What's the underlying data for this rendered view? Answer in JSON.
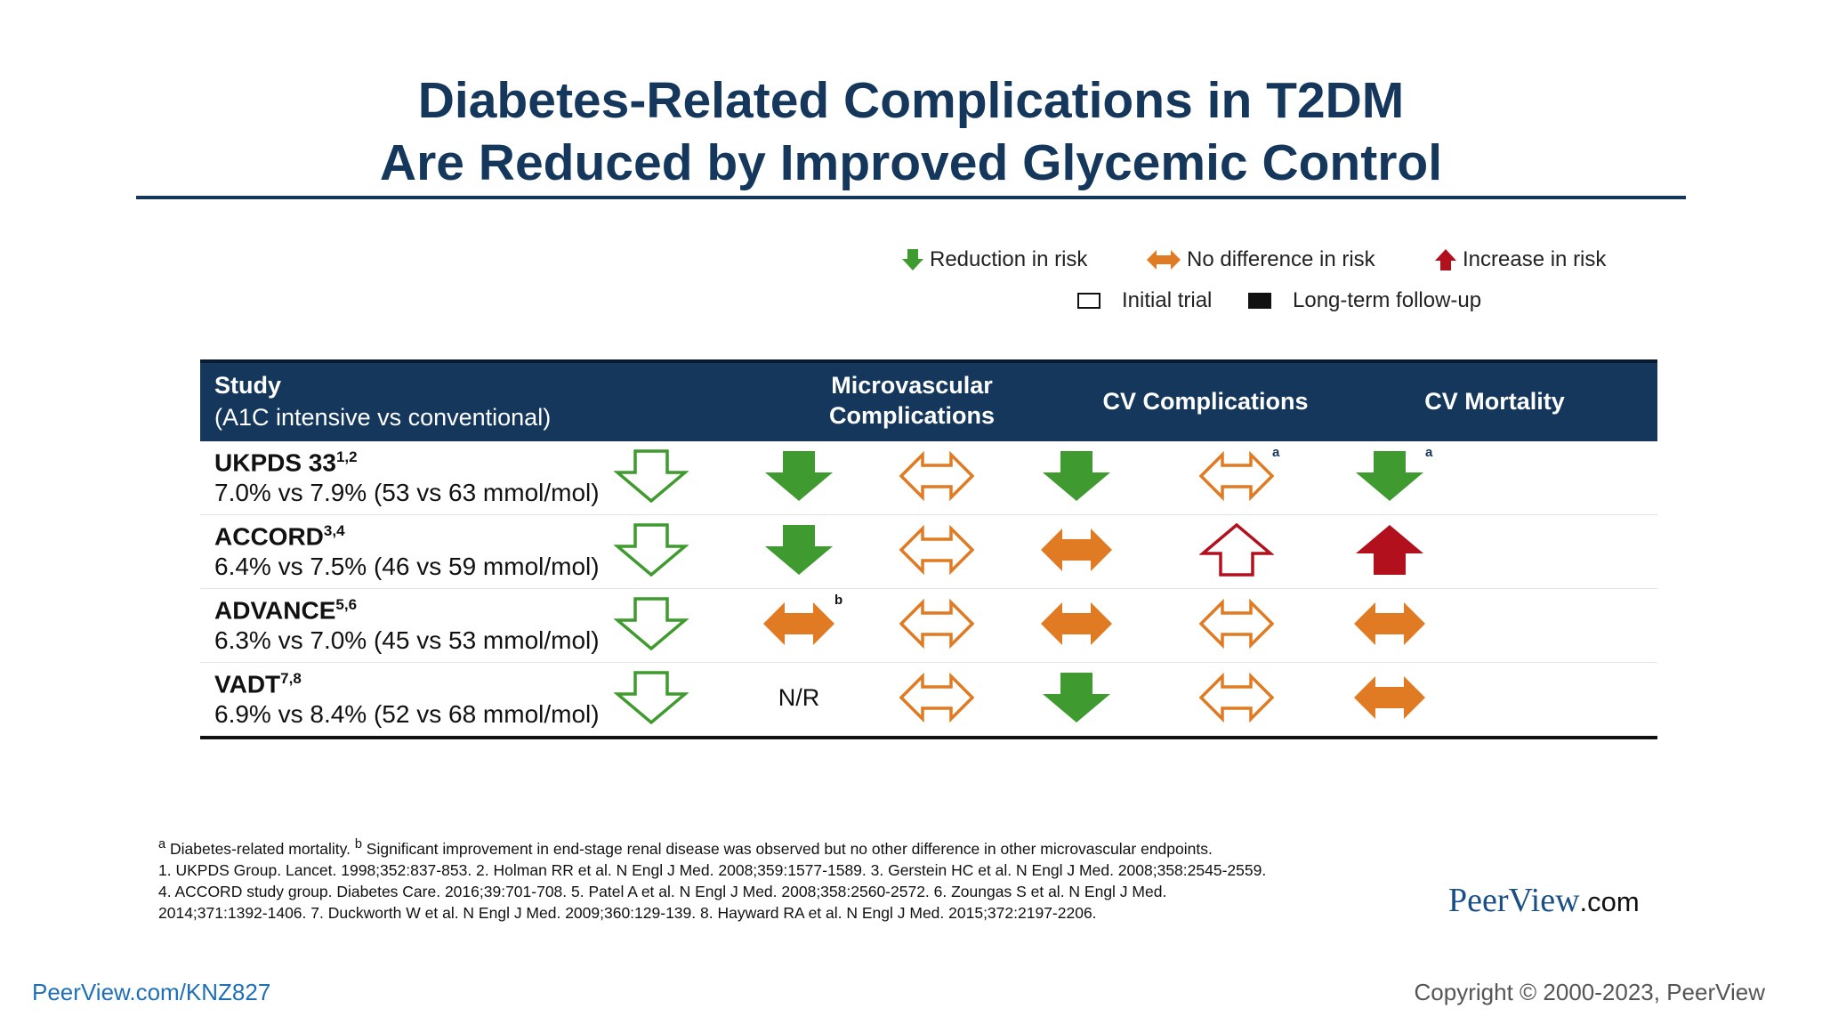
{
  "title": {
    "line1": "Diabetes-Related Complications in T2DM",
    "line2": "Are Reduced by Improved Glycemic Control"
  },
  "legend": {
    "reduction": "Reduction in risk",
    "no_difference": "No difference in risk",
    "increase": "Increase in risk",
    "initial": "Initial trial",
    "longterm": "Long-term follow-up"
  },
  "colors": {
    "navy": "#15375c",
    "green": "#3f9a2f",
    "orange": "#e07b24",
    "red": "#b3101e"
  },
  "table": {
    "headers": {
      "study": "Study",
      "study_sub": "(A1C intensive vs conventional)",
      "micro_line1": "Microvascular",
      "micro_line2": "Complications",
      "cv": "CV Complications",
      "mortality": "CV Mortality"
    },
    "rows": [
      {
        "name": "UKPDS 33",
        "sup": "1,2",
        "value": "7.0% vs 7.9% (53 vs 63 mmol/mol)",
        "cells": [
          {
            "icon": "down-arrow-outline-icon",
            "color": "green"
          },
          {
            "icon": "down-arrow-filled-icon",
            "color": "green"
          },
          {
            "icon": "double-arrow-outline-icon",
            "color": "orange"
          },
          {
            "icon": "down-arrow-filled-icon",
            "color": "green"
          },
          {
            "icon": "double-arrow-outline-icon",
            "color": "orange",
            "note": "a"
          },
          {
            "icon": "down-arrow-filled-icon",
            "color": "green",
            "note": "a"
          }
        ]
      },
      {
        "name": "ACCORD",
        "sup": "3,4",
        "value": "6.4% vs 7.5% (46 vs 59 mmol/mol)",
        "cells": [
          {
            "icon": "down-arrow-outline-icon",
            "color": "green"
          },
          {
            "icon": "down-arrow-filled-icon",
            "color": "green"
          },
          {
            "icon": "double-arrow-outline-icon",
            "color": "orange"
          },
          {
            "icon": "double-arrow-filled-icon",
            "color": "orange"
          },
          {
            "icon": "up-arrow-outline-icon",
            "color": "red"
          },
          {
            "icon": "up-arrow-filled-icon",
            "color": "red"
          }
        ]
      },
      {
        "name": "ADVANCE",
        "sup": "5,6",
        "value": "6.3% vs 7.0% (45 vs 53 mmol/mol)",
        "cells": [
          {
            "icon": "down-arrow-outline-icon",
            "color": "green"
          },
          {
            "icon": "double-arrow-filled-icon",
            "color": "orange",
            "note": "b"
          },
          {
            "icon": "double-arrow-outline-icon",
            "color": "orange"
          },
          {
            "icon": "double-arrow-filled-icon",
            "color": "orange"
          },
          {
            "icon": "double-arrow-outline-icon",
            "color": "orange"
          },
          {
            "icon": "double-arrow-filled-icon",
            "color": "orange"
          }
        ]
      },
      {
        "name": "VADT",
        "sup": "7,8",
        "value": "6.9% vs 8.4% (52 vs 68 mmol/mol)",
        "cells": [
          {
            "icon": "down-arrow-outline-icon",
            "color": "green"
          },
          {
            "icon": "text",
            "text": "N/R"
          },
          {
            "icon": "double-arrow-outline-icon",
            "color": "orange"
          },
          {
            "icon": "down-arrow-filled-icon",
            "color": "green"
          },
          {
            "icon": "double-arrow-outline-icon",
            "color": "orange"
          },
          {
            "icon": "double-arrow-filled-icon",
            "color": "orange"
          }
        ]
      }
    ]
  },
  "footnotes": {
    "line1_a": "a",
    "line1_a_text": "Diabetes-related mortality.",
    "line1_b": "b",
    "line1_b_text": "Significant improvement in end-stage renal disease was observed but no other difference in other microvascular endpoints.",
    "line2": "1. UKPDS Group. Lancet. 1998;352:837-853. 2. Holman RR et al. N Engl J Med. 2008;359:1577-1589. 3. Gerstein HC et al. N Engl J Med. 2008;358:2545-2559.",
    "line3": "4. ACCORD study group. Diabetes Care. 2016;39:701-708. 5. Patel A et al. N Engl J Med. 2008;358:2560-2572. 6. Zoungas S et al. N Engl J Med.",
    "line4": "2014;371:1392-1406. 7. Duckworth W et al. N Engl J Med. 2009;360:129-139. 8. Hayward RA et al. N Engl J Med. 2015;372:2197-2206."
  },
  "brand": {
    "name": "PeerView",
    "suffix": ".com"
  },
  "bottom_link": "PeerView.com/KNZ827",
  "copyright": "Copyright © 2000-2023, PeerView"
}
